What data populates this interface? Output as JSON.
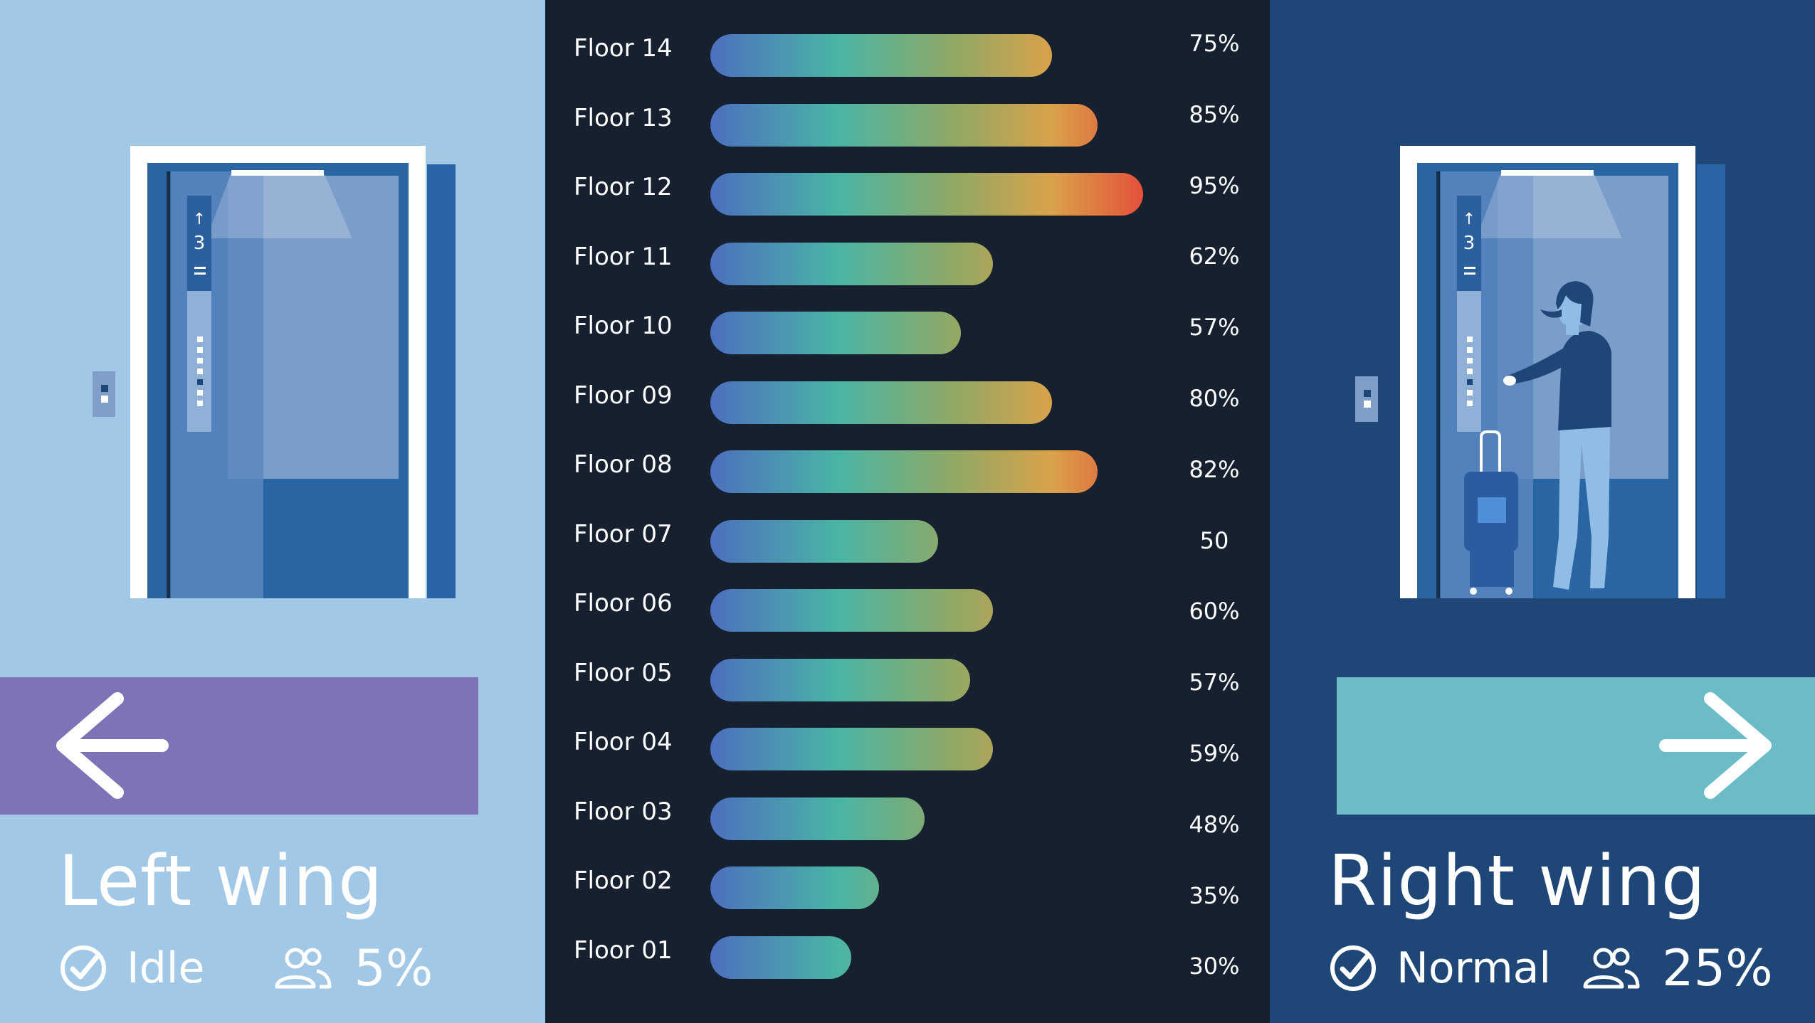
{
  "colors": {
    "left_panel_bg": "#a2c8e8",
    "right_panel_bg": "#1e4677",
    "center_bg": "#16202f",
    "left_arrow_bar": "#7f73b8",
    "right_arrow_bar": "#6bbcc7",
    "bar_gradient": [
      "#4c6fbf",
      "#4ab5a5",
      "#8fa865",
      "#d9a24a",
      "#e4503a"
    ]
  },
  "left_wing": {
    "title": "Left wing",
    "status_icon": "check-circle-icon",
    "status": "Idle",
    "occupancy_icon": "people-icon",
    "load": "5%",
    "arrow_icon": "arrow-left-icon"
  },
  "right_wing": {
    "title": "Right wing",
    "status_icon": "check-circle-icon",
    "status": "Normal",
    "occupancy_icon": "people-icon",
    "load": "25%",
    "arrow_icon": "arrow-right-icon"
  },
  "chart_data": {
    "type": "bar",
    "orientation": "horizontal",
    "categories": [
      "Floor 14",
      "Floor 13",
      "Floor 12",
      "Floor 11",
      "Floor 10",
      "Floor 09",
      "Floor 08",
      "Floor 07",
      "Floor 06",
      "Floor 05",
      "Floor 04",
      "Floor 03",
      "Floor 02",
      "Floor 01"
    ],
    "values": [
      75,
      85,
      95,
      62,
      57,
      80,
      82,
      50,
      60,
      57,
      59,
      48,
      35,
      30
    ],
    "value_labels": [
      "75%",
      "85%",
      "95%",
      "62%",
      "57%",
      "80%",
      "82%",
      "50",
      "60%",
      "57%",
      "59%",
      "48%",
      "35%",
      "30%"
    ],
    "bar_lengths_pct": [
      75,
      85,
      95,
      62,
      55,
      75,
      85,
      50,
      62,
      57,
      62,
      47,
      37,
      31
    ],
    "xlim": [
      0,
      100
    ]
  }
}
